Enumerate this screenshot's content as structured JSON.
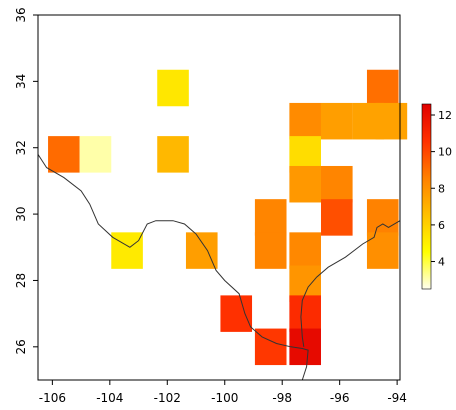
{
  "chart_data": {
    "type": "heatmap",
    "title": "",
    "xlabel": "",
    "ylabel": "",
    "xlim": [
      -106.5,
      -93.9
    ],
    "ylim": [
      25,
      36
    ],
    "x_ticks": [
      "-106",
      "-104",
      "-102",
      "-100",
      "-98",
      "-96",
      "-94"
    ],
    "y_ticks": [
      "26",
      "28",
      "30",
      "32",
      "34",
      "36"
    ],
    "cell_size_degrees": 1.1,
    "cells": [
      {
        "lon": -101.8,
        "lat": 33.8,
        "value": 5.3
      },
      {
        "lon": -94.5,
        "lat": 33.8,
        "value": 9.0
      },
      {
        "lon": -97.2,
        "lat": 32.8,
        "value": 8.2
      },
      {
        "lon": -96.1,
        "lat": 32.8,
        "value": 7.6
      },
      {
        "lon": -95.0,
        "lat": 32.8,
        "value": 7.5
      },
      {
        "lon": -94.2,
        "lat": 32.8,
        "value": 7.5
      },
      {
        "lon": -105.6,
        "lat": 31.8,
        "value": 9.1
      },
      {
        "lon": -104.5,
        "lat": 31.8,
        "value": 3.1
      },
      {
        "lon": -101.8,
        "lat": 31.8,
        "value": 6.8
      },
      {
        "lon": -97.2,
        "lat": 31.8,
        "value": 5.6
      },
      {
        "lon": -97.2,
        "lat": 30.9,
        "value": 7.8
      },
      {
        "lon": -96.1,
        "lat": 30.9,
        "value": 8.4
      },
      {
        "lon": -98.4,
        "lat": 29.9,
        "value": 8.4
      },
      {
        "lon": -96.1,
        "lat": 29.9,
        "value": 9.8
      },
      {
        "lon": -94.5,
        "lat": 29.9,
        "value": 8.5
      },
      {
        "lon": -103.4,
        "lat": 28.9,
        "value": 5.2
      },
      {
        "lon": -100.8,
        "lat": 28.9,
        "value": 7.6
      },
      {
        "lon": -98.4,
        "lat": 28.9,
        "value": 8.4
      },
      {
        "lon": -97.2,
        "lat": 28.9,
        "value": 8.3
      },
      {
        "lon": -94.5,
        "lat": 28.9,
        "value": 8.1
      },
      {
        "lon": -97.2,
        "lat": 27.9,
        "value": 7.9
      },
      {
        "lon": -99.6,
        "lat": 27.0,
        "value": 10.6
      },
      {
        "lon": -97.2,
        "lat": 27.0,
        "value": 10.8
      },
      {
        "lon": -98.4,
        "lat": 26.0,
        "value": 10.4
      },
      {
        "lon": -97.2,
        "lat": 26.0,
        "value": 12.2
      }
    ],
    "colorbar": {
      "min": 2.5,
      "max": 12.6,
      "ticks": [
        "4",
        "6",
        "8",
        "10",
        "12"
      ],
      "stops": [
        "#fffff0",
        "#ffff00",
        "#ffc000",
        "#ff8000",
        "#ff3000",
        "#e00000"
      ]
    },
    "coastline": [
      [
        -106.5,
        31.8
      ],
      [
        -106.2,
        31.4
      ],
      [
        -105.6,
        31.1
      ],
      [
        -105.0,
        30.7
      ],
      [
        -104.7,
        30.3
      ],
      [
        -104.4,
        29.7
      ],
      [
        -103.9,
        29.3
      ],
      [
        -103.3,
        29.0
      ],
      [
        -103.0,
        29.2
      ],
      [
        -102.7,
        29.7
      ],
      [
        -102.4,
        29.8
      ],
      [
        -101.8,
        29.8
      ],
      [
        -101.4,
        29.7
      ],
      [
        -101.0,
        29.4
      ],
      [
        -100.6,
        28.9
      ],
      [
        -100.3,
        28.3
      ],
      [
        -100.0,
        28.0
      ],
      [
        -99.5,
        27.6
      ],
      [
        -99.3,
        27.0
      ],
      [
        -99.1,
        26.6
      ],
      [
        -98.7,
        26.3
      ],
      [
        -98.2,
        26.1
      ],
      [
        -97.7,
        26.0
      ],
      [
        -97.3,
        25.95
      ],
      [
        -97.1,
        25.9
      ],
      [
        -97.15,
        25.4
      ],
      [
        -97.3,
        25.0
      ]
    ],
    "gulf_coast": [
      [
        -97.25,
        26.0
      ],
      [
        -97.3,
        26.3
      ],
      [
        -97.35,
        26.9
      ],
      [
        -97.3,
        27.4
      ],
      [
        -97.1,
        27.8
      ],
      [
        -96.8,
        28.1
      ],
      [
        -96.4,
        28.4
      ],
      [
        -95.8,
        28.7
      ],
      [
        -95.2,
        29.1
      ],
      [
        -94.8,
        29.3
      ],
      [
        -94.7,
        29.6
      ],
      [
        -94.5,
        29.7
      ],
      [
        -94.3,
        29.6
      ],
      [
        -93.9,
        29.8
      ]
    ]
  }
}
